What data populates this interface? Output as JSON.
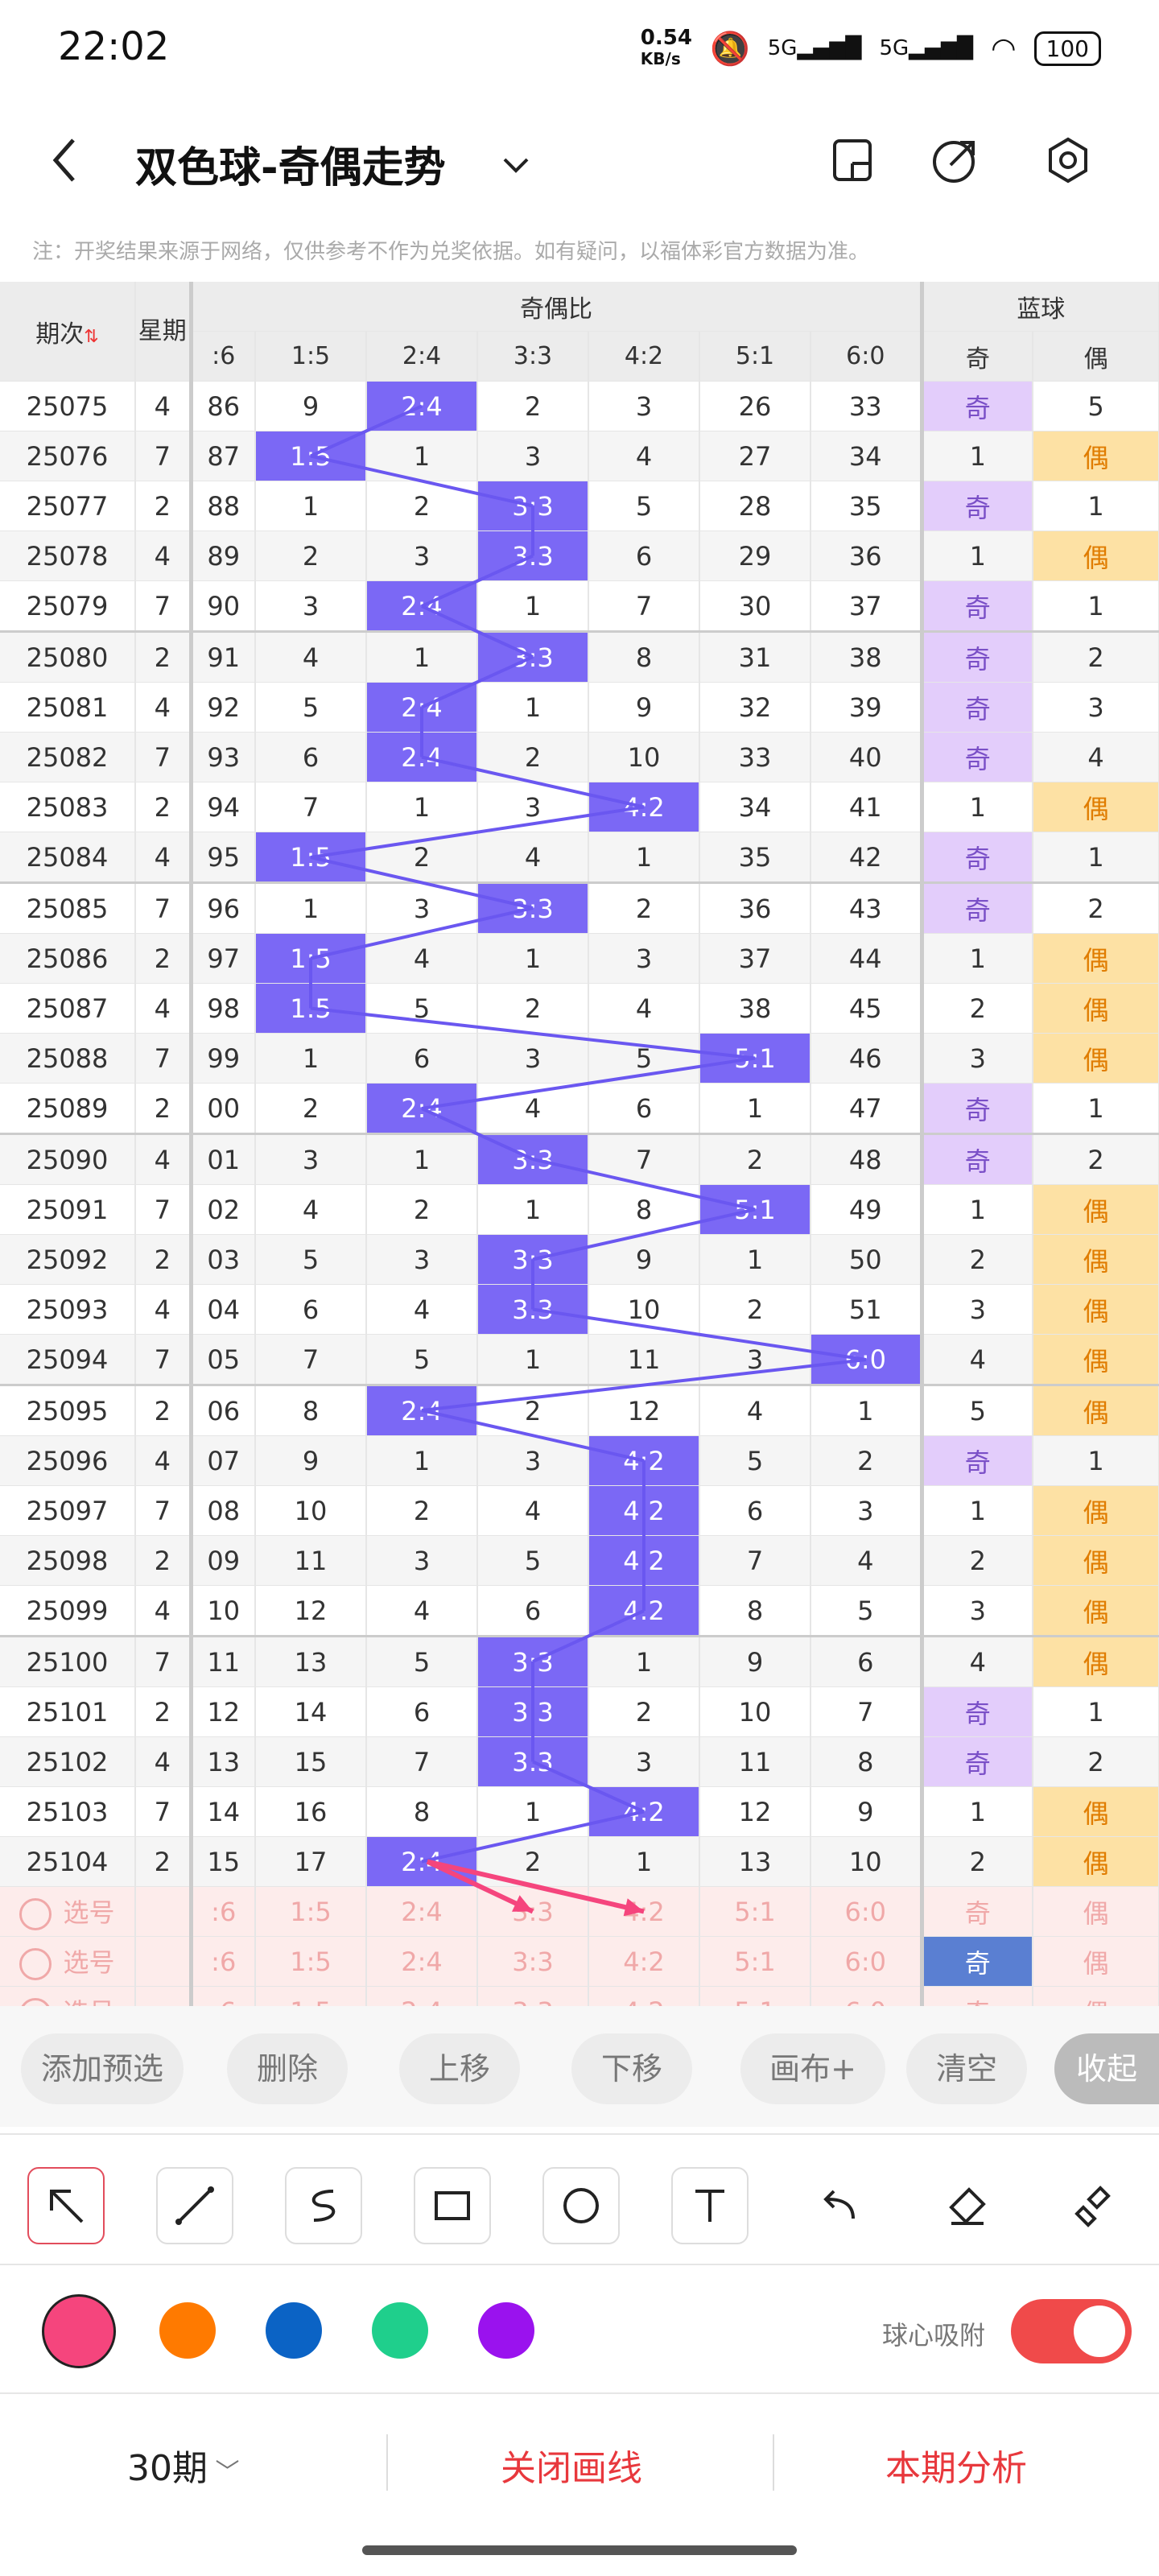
{
  "status": {
    "time": "22:02",
    "speed_value": "0.54",
    "speed_unit": "KB/s",
    "signal1": "5G",
    "signal2": "5G",
    "battery": "100"
  },
  "header": {
    "title": "双色球-奇偶走势"
  },
  "note": "注：开奖结果来源于网络，仅供参考不作为兑奖依据。如有疑问，以福体彩官方数据为准。",
  "table": {
    "headers": {
      "issue": "期次",
      "week": "星期",
      "group": "奇偶比",
      "blue": "蓝球",
      "ratios": [
        ":6",
        "1:5",
        "2:4",
        "3:3",
        "4:2",
        "5:1",
        "6:0"
      ],
      "odd": "奇",
      "even": "偶"
    },
    "rows": [
      {
        "issue": "25075",
        "week": "4",
        "r": [
          "86",
          "9",
          "2:4",
          "2",
          "3",
          "26",
          "33"
        ],
        "hit": 2,
        "odd": "奇",
        "even": "5",
        "b": "odd"
      },
      {
        "issue": "25076",
        "week": "7",
        "r": [
          "87",
          "1:5",
          "1",
          "3",
          "4",
          "27",
          "34"
        ],
        "hit": 1,
        "odd": "1",
        "even": "偶",
        "b": "even"
      },
      {
        "issue": "25077",
        "week": "2",
        "r": [
          "88",
          "1",
          "2",
          "3:3",
          "5",
          "28",
          "35"
        ],
        "hit": 3,
        "odd": "奇",
        "even": "1",
        "b": "odd"
      },
      {
        "issue": "25078",
        "week": "4",
        "r": [
          "89",
          "2",
          "3",
          "3:3",
          "6",
          "29",
          "36"
        ],
        "hit": 3,
        "odd": "1",
        "even": "偶",
        "b": "even"
      },
      {
        "issue": "25079",
        "week": "7",
        "r": [
          "90",
          "3",
          "2:4",
          "1",
          "7",
          "30",
          "37"
        ],
        "hit": 2,
        "odd": "奇",
        "even": "1",
        "b": "odd"
      },
      {
        "issue": "25080",
        "week": "2",
        "r": [
          "91",
          "4",
          "1",
          "3:3",
          "8",
          "31",
          "38"
        ],
        "hit": 3,
        "odd": "奇",
        "even": "2",
        "b": "odd"
      },
      {
        "issue": "25081",
        "week": "4",
        "r": [
          "92",
          "5",
          "2:4",
          "1",
          "9",
          "32",
          "39"
        ],
        "hit": 2,
        "odd": "奇",
        "even": "3",
        "b": "odd"
      },
      {
        "issue": "25082",
        "week": "7",
        "r": [
          "93",
          "6",
          "2:4",
          "2",
          "10",
          "33",
          "40"
        ],
        "hit": 2,
        "odd": "奇",
        "even": "4",
        "b": "odd"
      },
      {
        "issue": "25083",
        "week": "2",
        "r": [
          "94",
          "7",
          "1",
          "3",
          "4:2",
          "34",
          "41"
        ],
        "hit": 4,
        "odd": "1",
        "even": "偶",
        "b": "even"
      },
      {
        "issue": "25084",
        "week": "4",
        "r": [
          "95",
          "1:5",
          "2",
          "4",
          "1",
          "35",
          "42"
        ],
        "hit": 1,
        "odd": "奇",
        "even": "1",
        "b": "odd"
      },
      {
        "issue": "25085",
        "week": "7",
        "r": [
          "96",
          "1",
          "3",
          "3:3",
          "2",
          "36",
          "43"
        ],
        "hit": 3,
        "odd": "奇",
        "even": "2",
        "b": "odd"
      },
      {
        "issue": "25086",
        "week": "2",
        "r": [
          "97",
          "1:5",
          "4",
          "1",
          "3",
          "37",
          "44"
        ],
        "hit": 1,
        "odd": "1",
        "even": "偶",
        "b": "even"
      },
      {
        "issue": "25087",
        "week": "4",
        "r": [
          "98",
          "1:5",
          "5",
          "2",
          "4",
          "38",
          "45"
        ],
        "hit": 1,
        "odd": "2",
        "even": "偶",
        "b": "even"
      },
      {
        "issue": "25088",
        "week": "7",
        "r": [
          "99",
          "1",
          "6",
          "3",
          "5",
          "5:1",
          "46"
        ],
        "hit": 5,
        "odd": "3",
        "even": "偶",
        "b": "even"
      },
      {
        "issue": "25089",
        "week": "2",
        "r": [
          "00",
          "2",
          "2:4",
          "4",
          "6",
          "1",
          "47"
        ],
        "hit": 2,
        "odd": "奇",
        "even": "1",
        "b": "odd"
      },
      {
        "issue": "25090",
        "week": "4",
        "r": [
          "01",
          "3",
          "1",
          "3:3",
          "7",
          "2",
          "48"
        ],
        "hit": 3,
        "odd": "奇",
        "even": "2",
        "b": "odd"
      },
      {
        "issue": "25091",
        "week": "7",
        "r": [
          "02",
          "4",
          "2",
          "1",
          "8",
          "5:1",
          "49"
        ],
        "hit": 5,
        "odd": "1",
        "even": "偶",
        "b": "even"
      },
      {
        "issue": "25092",
        "week": "2",
        "r": [
          "03",
          "5",
          "3",
          "3:3",
          "9",
          "1",
          "50"
        ],
        "hit": 3,
        "odd": "2",
        "even": "偶",
        "b": "even"
      },
      {
        "issue": "25093",
        "week": "4",
        "r": [
          "04",
          "6",
          "4",
          "3:3",
          "10",
          "2",
          "51"
        ],
        "hit": 3,
        "odd": "3",
        "even": "偶",
        "b": "even"
      },
      {
        "issue": "25094",
        "week": "7",
        "r": [
          "05",
          "7",
          "5",
          "1",
          "11",
          "3",
          "6:0"
        ],
        "hit": 6,
        "odd": "4",
        "even": "偶",
        "b": "even"
      },
      {
        "issue": "25095",
        "week": "2",
        "r": [
          "06",
          "8",
          "2:4",
          "2",
          "12",
          "4",
          "1"
        ],
        "hit": 2,
        "odd": "5",
        "even": "偶",
        "b": "even"
      },
      {
        "issue": "25096",
        "week": "4",
        "r": [
          "07",
          "9",
          "1",
          "3",
          "4:2",
          "5",
          "2"
        ],
        "hit": 4,
        "odd": "奇",
        "even": "1",
        "b": "odd"
      },
      {
        "issue": "25097",
        "week": "7",
        "r": [
          "08",
          "10",
          "2",
          "4",
          "4:2",
          "6",
          "3"
        ],
        "hit": 4,
        "odd": "1",
        "even": "偶",
        "b": "even"
      },
      {
        "issue": "25098",
        "week": "2",
        "r": [
          "09",
          "11",
          "3",
          "5",
          "4:2",
          "7",
          "4"
        ],
        "hit": 4,
        "odd": "2",
        "even": "偶",
        "b": "even"
      },
      {
        "issue": "25099",
        "week": "4",
        "r": [
          "10",
          "12",
          "4",
          "6",
          "4:2",
          "8",
          "5"
        ],
        "hit": 4,
        "odd": "3",
        "even": "偶",
        "b": "even"
      },
      {
        "issue": "25100",
        "week": "7",
        "r": [
          "11",
          "13",
          "5",
          "3:3",
          "1",
          "9",
          "6"
        ],
        "hit": 3,
        "odd": "4",
        "even": "偶",
        "b": "even"
      },
      {
        "issue": "25101",
        "week": "2",
        "r": [
          "12",
          "14",
          "6",
          "3:3",
          "2",
          "10",
          "7"
        ],
        "hit": 3,
        "odd": "奇",
        "even": "1",
        "b": "odd"
      },
      {
        "issue": "25102",
        "week": "4",
        "r": [
          "13",
          "15",
          "7",
          "3:3",
          "3",
          "11",
          "8"
        ],
        "hit": 3,
        "odd": "奇",
        "even": "2",
        "b": "odd"
      },
      {
        "issue": "25103",
        "week": "7",
        "r": [
          "14",
          "16",
          "8",
          "1",
          "4:2",
          "12",
          "9"
        ],
        "hit": 4,
        "odd": "1",
        "even": "偶",
        "b": "even"
      },
      {
        "issue": "25104",
        "week": "2",
        "r": [
          "15",
          "17",
          "2:4",
          "2",
          "1",
          "13",
          "10"
        ],
        "hit": 2,
        "odd": "2",
        "even": "偶",
        "b": "even"
      }
    ],
    "preselect": {
      "label": "选号",
      "ratios": [
        ":6",
        "1:5",
        "2:4",
        "3:3",
        "4:2",
        "5:1",
        "6:0"
      ],
      "odd": "奇",
      "even": "偶"
    }
  },
  "buttons": [
    "添加预选",
    "删除",
    "上移",
    "下移",
    "画布+",
    "清空",
    "收起"
  ],
  "tools": [
    "arrow-tool",
    "line-tool",
    "curve-tool",
    "rectangle-tool",
    "circle-tool",
    "text-tool",
    "undo-tool",
    "eraser-tool",
    "clear-brush-tool"
  ],
  "colors": [
    "#f5457d",
    "#ff7a00",
    "#0b63c5",
    "#1fcf8c",
    "#9a12ee"
  ],
  "snap_label": "球心吸附",
  "snap_on": true,
  "bottom": {
    "period": "30期",
    "close": "关闭画线",
    "analysis": "本期分析"
  },
  "accent": "#e8383d"
}
